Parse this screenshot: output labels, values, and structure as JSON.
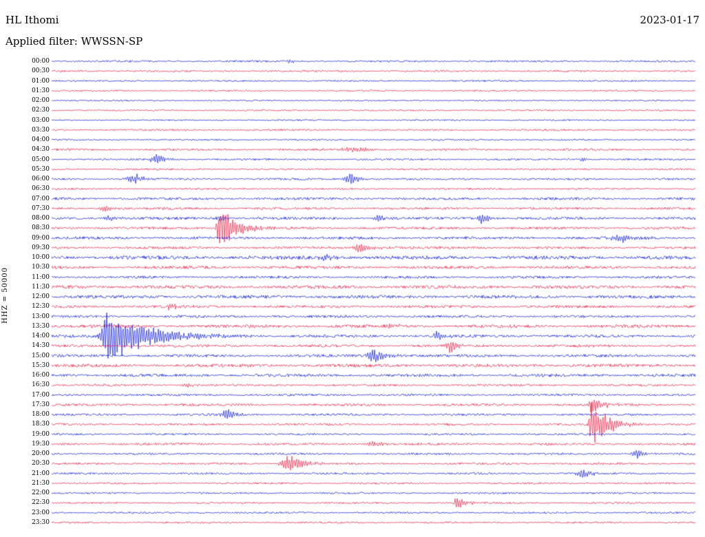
{
  "header": {
    "station": "HL Ithomi",
    "date": "2023-01-17",
    "filter_label": "Applied filter: WWSSN-SP"
  },
  "axis": {
    "y_label": "HHZ = 50000"
  },
  "colors": {
    "even_trace": "#0010d8",
    "odd_trace": "#e8153d"
  },
  "chart_data": {
    "type": "line",
    "title": "HL Ithomi 24-hour helicorder seismogram, 2023-01-17, WWSSN-SP filter",
    "row_duration_minutes": 30,
    "color_pattern": "alternating blue (on the hour) / red (half hour)",
    "rows": [
      "00:00",
      "00:30",
      "01:00",
      "01:30",
      "02:00",
      "02:30",
      "03:00",
      "03:30",
      "04:00",
      "04:30",
      "05:00",
      "05:30",
      "06:00",
      "06:30",
      "07:00",
      "07:30",
      "08:00",
      "08:30",
      "09:00",
      "09:30",
      "10:00",
      "10:30",
      "11:00",
      "11:30",
      "12:00",
      "12:30",
      "13:00",
      "13:30",
      "14:00",
      "14:30",
      "15:00",
      "15:30",
      "16:00",
      "16:30",
      "17:00",
      "17:30",
      "18:00",
      "18:30",
      "19:00",
      "19:30",
      "20:00",
      "20:30",
      "21:00",
      "21:30",
      "22:00",
      "22:30",
      "23:00",
      "23:30"
    ],
    "noise_amplitudes": [
      1.0,
      1.0,
      0.9,
      0.9,
      0.8,
      0.8,
      0.8,
      1.0,
      0.9,
      1.2,
      1.0,
      1.0,
      1.1,
      1.0,
      1.4,
      1.3,
      1.5,
      1.4,
      1.5,
      1.4,
      2.0,
      1.6,
      1.4,
      1.8,
      1.8,
      1.5,
      1.4,
      1.8,
      1.6,
      1.5,
      1.5,
      1.8,
      1.6,
      1.2,
      1.2,
      1.4,
      1.2,
      1.2,
      1.1,
      1.3,
      1.1,
      1.2,
      1.1,
      1.0,
      1.0,
      1.0,
      1.0,
      1.0
    ],
    "events": [
      {
        "time": "00:00",
        "x": 0.37,
        "amp": 2.5,
        "w": 4,
        "coda": 10
      },
      {
        "time": "04:30",
        "x": 0.48,
        "amp": 2.5,
        "w": 25,
        "coda": 30
      },
      {
        "time": "05:00",
        "x": 0.166,
        "amp": 6,
        "w": 8,
        "coda": 12
      },
      {
        "time": "05:00",
        "x": 0.825,
        "amp": 3,
        "w": 3,
        "coda": 8
      },
      {
        "time": "06:00",
        "x": 0.13,
        "amp": 6,
        "w": 8,
        "coda": 12
      },
      {
        "time": "06:00",
        "x": 0.467,
        "amp": 6,
        "w": 8,
        "coda": 12
      },
      {
        "time": "07:30",
        "x": 0.082,
        "amp": 4,
        "w": 5,
        "coda": 10
      },
      {
        "time": "08:00",
        "x": 0.09,
        "amp": 4,
        "w": 6,
        "coda": 10
      },
      {
        "time": "08:00",
        "x": 0.26,
        "amp": 3,
        "w": 3,
        "coda": 15
      },
      {
        "time": "08:00",
        "x": 0.508,
        "amp": 5,
        "w": 5,
        "coda": 10
      },
      {
        "time": "08:00",
        "x": 0.668,
        "amp": 7,
        "w": 4,
        "coda": 10
      },
      {
        "time": "08:30",
        "x": 0.26,
        "amp": 28,
        "w": 2.5,
        "coda": 22
      },
      {
        "time": "09:00",
        "x": 0.885,
        "amp": 5,
        "w": 12,
        "coda": 20
      },
      {
        "time": "09:30",
        "x": 0.476,
        "amp": 6,
        "w": 6,
        "coda": 20
      },
      {
        "time": "10:00",
        "x": 0.43,
        "amp": 3,
        "w": 10,
        "coda": 20
      },
      {
        "time": "12:30",
        "x": 0.187,
        "amp": 4,
        "w": 6,
        "coda": 15
      },
      {
        "time": "13:30",
        "x": 0.53,
        "amp": 3,
        "w": 4,
        "coda": 10
      },
      {
        "time": "14:00",
        "x": 0.086,
        "amp": 30,
        "w": 6,
        "coda": 55
      },
      {
        "time": "14:00",
        "x": 0.599,
        "amp": 5,
        "w": 4,
        "coda": 10
      },
      {
        "time": "14:30",
        "x": 0.62,
        "amp": 8,
        "w": 5,
        "coda": 12
      },
      {
        "time": "15:00",
        "x": 0.503,
        "amp": 8,
        "w": 8,
        "coda": 15
      },
      {
        "time": "16:30",
        "x": 0.21,
        "amp": 2.5,
        "w": 5,
        "coda": 10
      },
      {
        "time": "17:30",
        "x": 0.84,
        "amp": 10,
        "w": 4,
        "coda": 15
      },
      {
        "time": "18:00",
        "x": 0.273,
        "amp": 8,
        "w": 5,
        "coda": 12
      },
      {
        "time": "18:30",
        "x": 0.84,
        "amp": 26,
        "w": 3,
        "coda": 22
      },
      {
        "time": "19:30",
        "x": 0.5,
        "amp": 3,
        "w": 8,
        "coda": 15
      },
      {
        "time": "20:00",
        "x": 0.909,
        "amp": 5,
        "w": 6,
        "coda": 12
      },
      {
        "time": "20:30",
        "x": 0.374,
        "amp": 9,
        "w": 12,
        "coda": 20
      },
      {
        "time": "21:00",
        "x": 0.824,
        "amp": 6,
        "w": 6,
        "coda": 12
      },
      {
        "time": "22:30",
        "x": 0.631,
        "amp": 8,
        "w": 4,
        "coda": 10
      }
    ],
    "xlabel": "",
    "ylabel": "HHZ = 50000",
    "grid": false,
    "legend": false
  }
}
